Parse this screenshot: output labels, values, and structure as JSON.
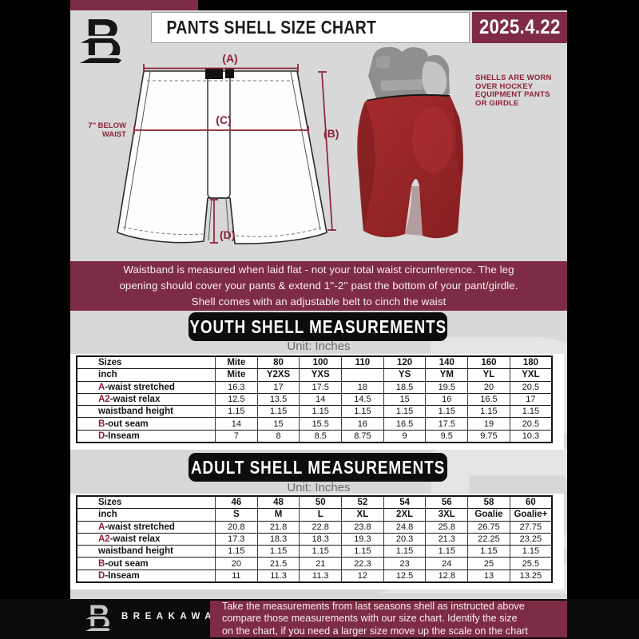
{
  "header": {
    "title": "PANTS SHELL SIZE CHART",
    "date": "2025.4.22"
  },
  "diagram": {
    "label_a": "(A)",
    "label_b": "(B)",
    "label_c": "(C)",
    "label_d": "(D)",
    "below_waist_line1": "7'' BELOW",
    "below_waist_line2": "WAIST"
  },
  "photo_note": {
    "lines": [
      "SHELLS ARE WORN",
      "OVER HOCKEY",
      "EQUIPMENT PANTS",
      "OR GIRDLE"
    ]
  },
  "banner": {
    "line1": "Waistband is measured when laid flat - not your total waist circumference. The leg",
    "line2": "opening should cover your pants & extend 1''-2'' past the bottom of your pant/girdle.",
    "line3": "Shell comes with an adjustable belt to cinch the waist"
  },
  "youth": {
    "heading": "YOUTH SHELL MEASUREMENTS",
    "unit": "Unit: Inches",
    "table": {
      "header_rows": 2,
      "rows": [
        {
          "prefix": "",
          "label": "Sizes",
          "values": [
            "Mite",
            "80",
            "100",
            "110",
            "120",
            "140",
            "160",
            "180"
          ]
        },
        {
          "prefix": "",
          "label": "inch",
          "values": [
            "Mite",
            "Y2XS",
            "YXS",
            "",
            "YS",
            "YM",
            "YL",
            "YXL"
          ]
        },
        {
          "prefix": "A",
          "label": "-waist stretched",
          "values": [
            "16.3",
            "17",
            "17.5",
            "18",
            "18.5",
            "19.5",
            "20",
            "20.5"
          ]
        },
        {
          "prefix": "A2",
          "label": "-waist relax",
          "values": [
            "12.5",
            "13.5",
            "14",
            "14.5",
            "15",
            "16",
            "16.5",
            "17"
          ]
        },
        {
          "prefix": "",
          "label": "waistband height",
          "values": [
            "1.15",
            "1.15",
            "1.15",
            "1.15",
            "1.15",
            "1.15",
            "1.15",
            "1.15"
          ]
        },
        {
          "prefix": "B",
          "label": "-out seam",
          "values": [
            "14",
            "15",
            "15.5",
            "16",
            "16.5",
            "17.5",
            "19",
            "20.5"
          ]
        },
        {
          "prefix": "D",
          "label": "-Inseam",
          "values": [
            "7",
            "8",
            "8.5",
            "8.75",
            "9",
            "9.5",
            "9.75",
            "10.3"
          ]
        }
      ]
    }
  },
  "adult": {
    "heading": "ADULT SHELL MEASUREMENTS",
    "unit": "Unit: Inches",
    "table": {
      "header_rows": 2,
      "rows": [
        {
          "prefix": "",
          "label": "Sizes",
          "values": [
            "46",
            "48",
            "50",
            "52",
            "54",
            "56",
            "58",
            "60"
          ]
        },
        {
          "prefix": "",
          "label": "inch",
          "values": [
            "S",
            "M",
            "L",
            "XL",
            "2XL",
            "3XL",
            "Goalie",
            "Goalie+"
          ]
        },
        {
          "prefix": "A",
          "label": "-waist stretched",
          "values": [
            "20.8",
            "21.8",
            "22.8",
            "23.8",
            "24.8",
            "25.8",
            "26.75",
            "27.75"
          ]
        },
        {
          "prefix": "A2",
          "label": "-waist relax",
          "values": [
            "17.3",
            "18.3",
            "18.3",
            "19.3",
            "20.3",
            "21.3",
            "22.25",
            "23.25"
          ]
        },
        {
          "prefix": "",
          "label": "waistband height",
          "values": [
            "1.15",
            "1.15",
            "1.15",
            "1.15",
            "1.15",
            "1.15",
            "1.15",
            "1.15"
          ]
        },
        {
          "prefix": "B",
          "label": "-out seam",
          "values": [
            "20",
            "21.5",
            "21",
            "22.3",
            "23",
            "24",
            "25",
            "25.5"
          ]
        },
        {
          "prefix": "D",
          "label": "-Inseam",
          "values": [
            "11",
            "11.3",
            "11.3",
            "12",
            "12.5",
            "12.8",
            "13",
            "13.25"
          ]
        }
      ]
    }
  },
  "footer": {
    "brand": "BREAKAWAY",
    "lines": [
      "Take the measurements from last seasons shell as instructed above",
      "compare those measurements  with our size chart. Identify the size",
      "on the chart, if you need a larger size move up the scale on the chart"
    ]
  },
  "colors": {
    "maroon": "#7e2c45",
    "accent_red": "#8e1f35",
    "page_gray": "#d8d8d8",
    "shell_red": "#9b2628",
    "black": "#0b0b0b"
  }
}
